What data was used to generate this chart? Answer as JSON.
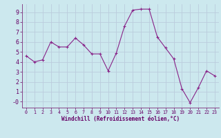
{
  "x": [
    0,
    1,
    2,
    3,
    4,
    5,
    6,
    7,
    8,
    9,
    10,
    11,
    12,
    13,
    14,
    15,
    16,
    17,
    18,
    19,
    20,
    21,
    22,
    23
  ],
  "y": [
    4.6,
    4.0,
    4.2,
    6.0,
    5.5,
    5.5,
    6.4,
    5.7,
    4.8,
    4.8,
    3.1,
    4.9,
    7.6,
    9.2,
    9.3,
    9.3,
    6.5,
    5.4,
    4.3,
    1.3,
    -0.1,
    1.4,
    3.1,
    2.6
  ],
  "line_color": "#882288",
  "marker": "+",
  "bg_color": "#cce8ee",
  "grid_color": "#bbccdd",
  "xlabel": "Windchill (Refroidissement éolien,°C)",
  "yticks": [
    0,
    1,
    2,
    3,
    4,
    5,
    6,
    7,
    8,
    9
  ],
  "ytick_labels": [
    "-0",
    "1",
    "2",
    "3",
    "4",
    "5",
    "6",
    "7",
    "8",
    "9"
  ],
  "xlim": [
    -0.5,
    23.5
  ],
  "ylim": [
    -0.6,
    9.8
  ],
  "label_color": "#660066",
  "tick_color": "#660066",
  "spine_color": "#884488"
}
